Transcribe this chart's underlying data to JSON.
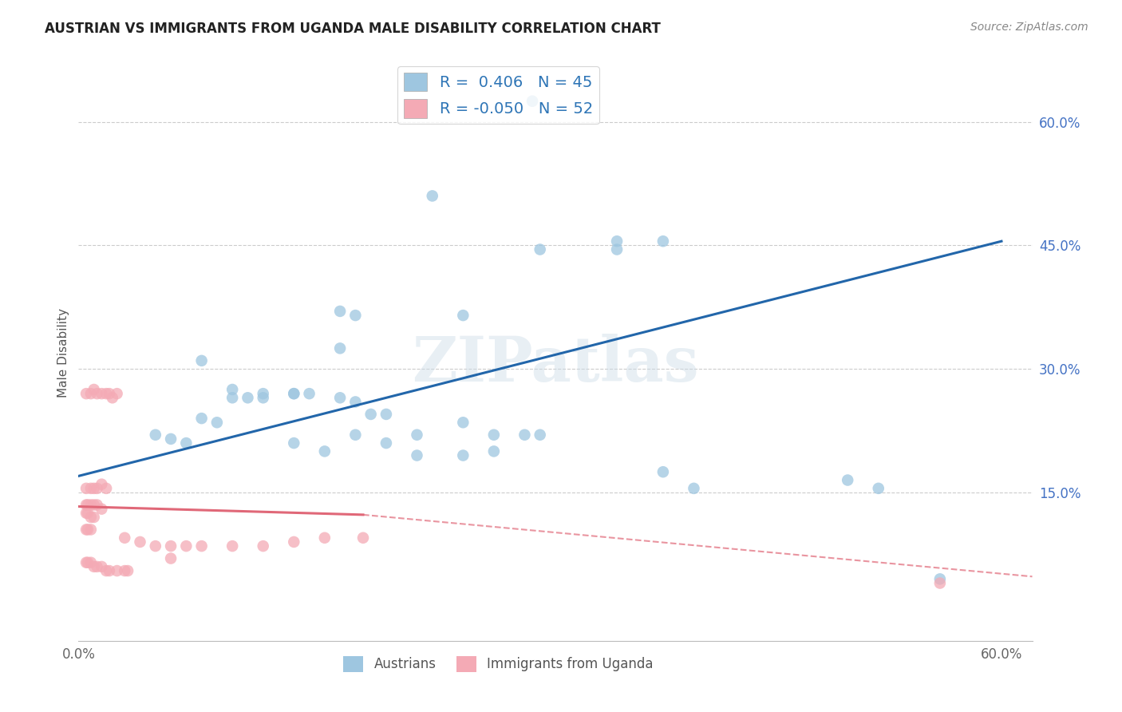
{
  "title": "AUSTRIAN VS IMMIGRANTS FROM UGANDA MALE DISABILITY CORRELATION CHART",
  "source": "Source: ZipAtlas.com",
  "ylabel": "Male Disability",
  "xlim": [
    0.0,
    0.62
  ],
  "ylim": [
    -0.03,
    0.67
  ],
  "ytick_labels_right": [
    "60.0%",
    "45.0%",
    "30.0%",
    "15.0%"
  ],
  "ytick_values_right": [
    0.6,
    0.45,
    0.3,
    0.15
  ],
  "grid_values": [
    0.6,
    0.45,
    0.3,
    0.15
  ],
  "legend_r_blue": "0.406",
  "legend_n_blue": "45",
  "legend_r_pink": "-0.050",
  "legend_n_pink": "52",
  "blue_color": "#9ec6e0",
  "pink_color": "#f4aab5",
  "trendline_blue_color": "#2266aa",
  "trendline_pink_color": "#e06878",
  "watermark": "ZIPatlas",
  "trendline_blue_x0": 0.0,
  "trendline_blue_y0": 0.17,
  "trendline_blue_x1": 0.6,
  "trendline_blue_y1": 0.455,
  "trendline_pink_solid_x0": 0.0,
  "trendline_pink_solid_y0": 0.133,
  "trendline_pink_solid_x1": 0.185,
  "trendline_pink_solid_y1": 0.123,
  "trendline_pink_dashed_x0": 0.185,
  "trendline_pink_dashed_y0": 0.123,
  "trendline_pink_dashed_x1": 0.62,
  "trendline_pink_dashed_y1": 0.048,
  "austrians_x": [
    0.295,
    0.23,
    0.3,
    0.35,
    0.35,
    0.38,
    0.25,
    0.17,
    0.18,
    0.17,
    0.08,
    0.1,
    0.12,
    0.14,
    0.11,
    0.05,
    0.06,
    0.07,
    0.08,
    0.09,
    0.1,
    0.12,
    0.14,
    0.15,
    0.17,
    0.18,
    0.19,
    0.2,
    0.22,
    0.25,
    0.27,
    0.27,
    0.14,
    0.16,
    0.18,
    0.2,
    0.22,
    0.25,
    0.29,
    0.3,
    0.38,
    0.4,
    0.5,
    0.52,
    0.56
  ],
  "austrians_y": [
    0.625,
    0.51,
    0.445,
    0.455,
    0.445,
    0.455,
    0.365,
    0.37,
    0.365,
    0.325,
    0.31,
    0.275,
    0.27,
    0.27,
    0.265,
    0.22,
    0.215,
    0.21,
    0.24,
    0.235,
    0.265,
    0.265,
    0.27,
    0.27,
    0.265,
    0.26,
    0.245,
    0.245,
    0.22,
    0.235,
    0.22,
    0.2,
    0.21,
    0.2,
    0.22,
    0.21,
    0.195,
    0.195,
    0.22,
    0.22,
    0.175,
    0.155,
    0.165,
    0.155,
    0.045
  ],
  "uganda_x": [
    0.005,
    0.008,
    0.01,
    0.012,
    0.015,
    0.018,
    0.02,
    0.022,
    0.025,
    0.005,
    0.008,
    0.01,
    0.012,
    0.015,
    0.018,
    0.005,
    0.006,
    0.008,
    0.01,
    0.012,
    0.015,
    0.005,
    0.006,
    0.008,
    0.01,
    0.005,
    0.006,
    0.008,
    0.03,
    0.04,
    0.05,
    0.06,
    0.07,
    0.08,
    0.1,
    0.12,
    0.14,
    0.16,
    0.185,
    0.005,
    0.006,
    0.008,
    0.01,
    0.012,
    0.015,
    0.018,
    0.02,
    0.025,
    0.03,
    0.032,
    0.06,
    0.56
  ],
  "uganda_y": [
    0.27,
    0.27,
    0.275,
    0.27,
    0.27,
    0.27,
    0.27,
    0.265,
    0.27,
    0.155,
    0.155,
    0.155,
    0.155,
    0.16,
    0.155,
    0.135,
    0.135,
    0.135,
    0.135,
    0.135,
    0.13,
    0.125,
    0.125,
    0.12,
    0.12,
    0.105,
    0.105,
    0.105,
    0.095,
    0.09,
    0.085,
    0.085,
    0.085,
    0.085,
    0.085,
    0.085,
    0.09,
    0.095,
    0.095,
    0.065,
    0.065,
    0.065,
    0.06,
    0.06,
    0.06,
    0.055,
    0.055,
    0.055,
    0.055,
    0.055,
    0.07,
    0.04
  ]
}
